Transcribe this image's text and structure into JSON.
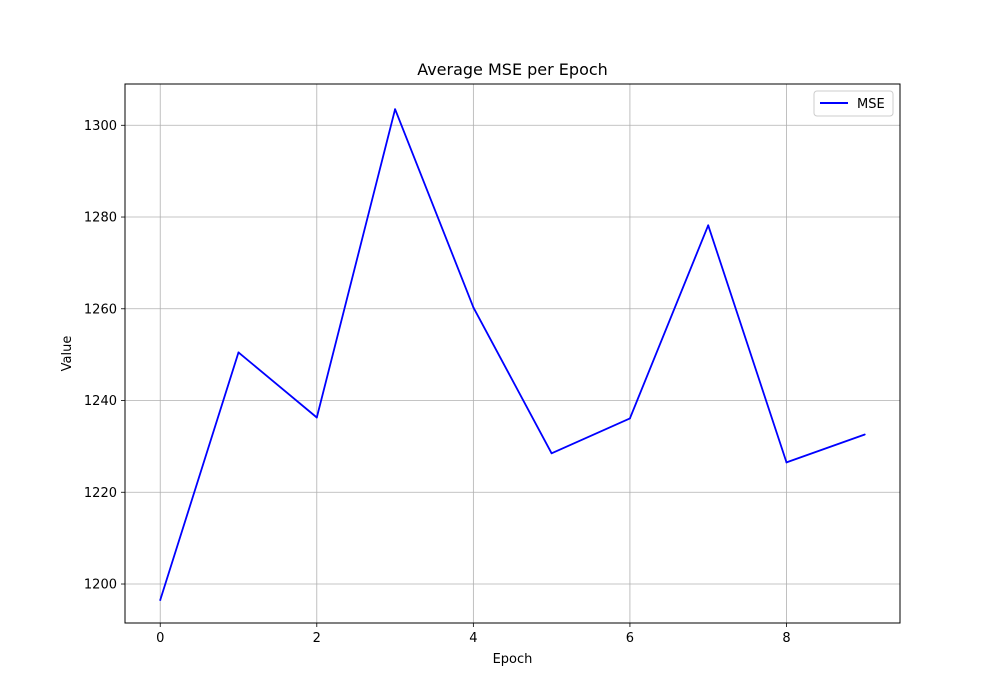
{
  "chart_data": {
    "type": "line",
    "title": "Average MSE per Epoch",
    "xlabel": "Epoch",
    "ylabel": "Value",
    "xlim": [
      -0.45,
      9.45
    ],
    "ylim": [
      1191.5,
      1309.0
    ],
    "xticks": [
      0,
      2,
      4,
      6,
      8
    ],
    "yticks": [
      1200,
      1220,
      1240,
      1260,
      1280,
      1300
    ],
    "grid": true,
    "legend_position": "top-right",
    "series": [
      {
        "name": "MSE",
        "color": "#0000ff",
        "x": [
          0,
          1,
          2,
          3,
          4,
          5,
          6,
          7,
          8,
          9
        ],
        "y": [
          1196.5,
          1250.5,
          1236.3,
          1303.5,
          1260.3,
          1228.5,
          1236.1,
          1278.2,
          1226.5,
          1232.6
        ]
      }
    ]
  }
}
